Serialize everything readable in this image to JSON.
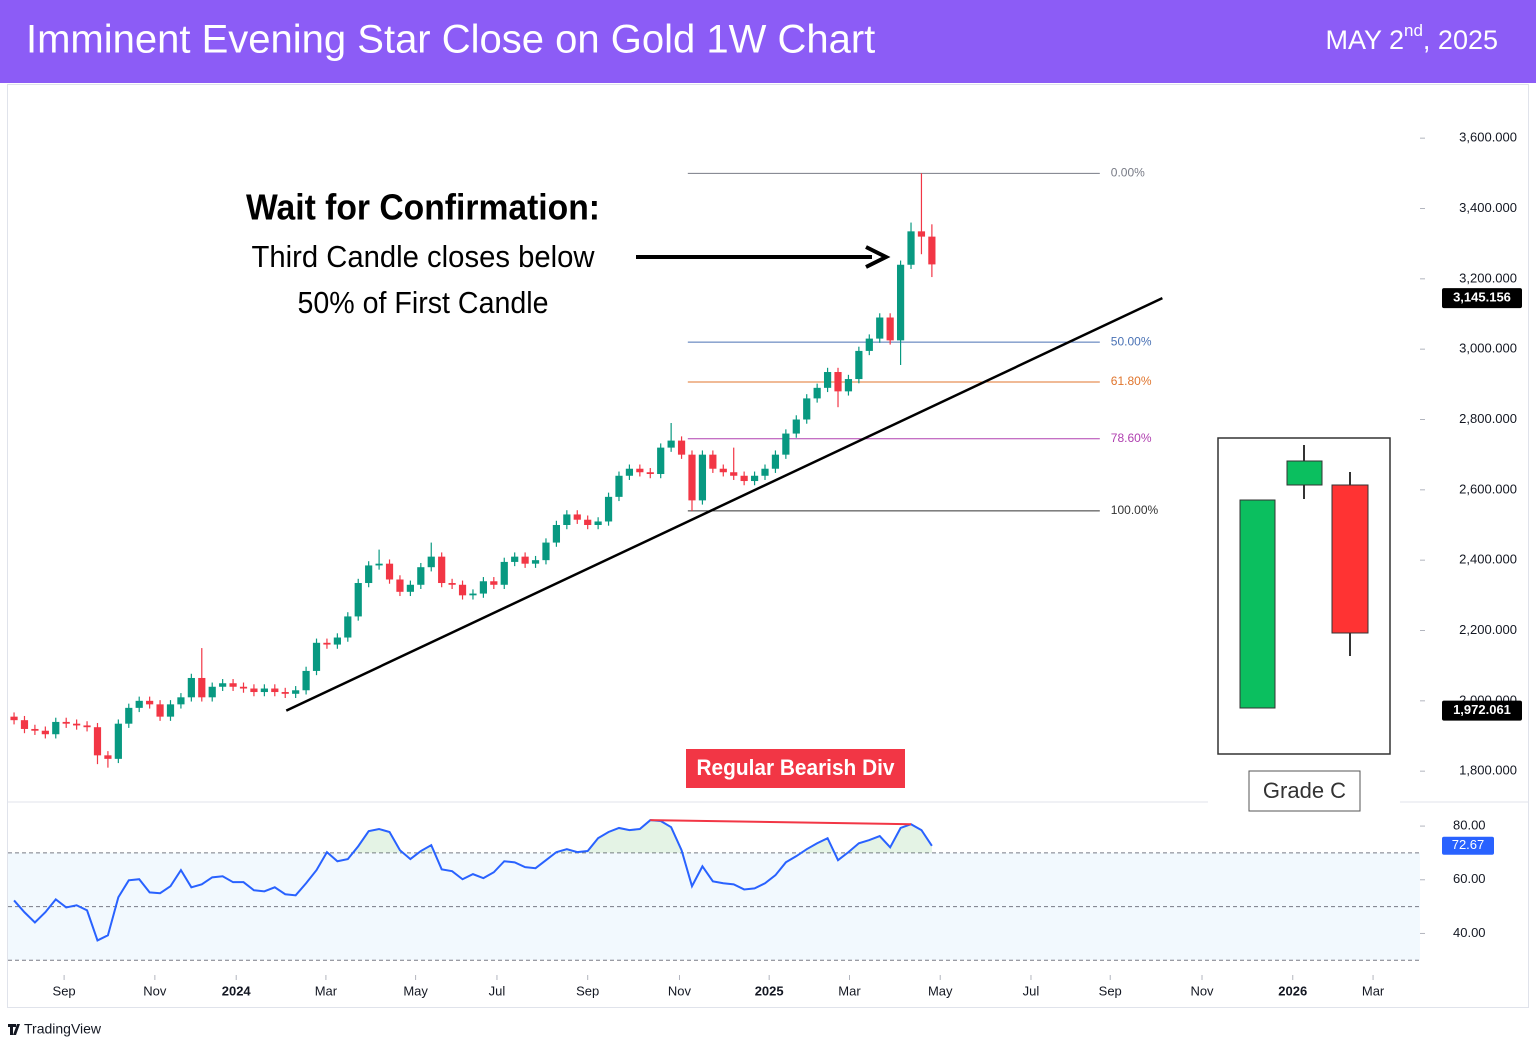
{
  "header": {
    "title": "Imminent Evening Star Close on Gold 1W Chart",
    "date": {
      "day": "MAY 2",
      "suffix": "nd",
      "year": ", 2025"
    }
  },
  "branding": "TradingView",
  "chart_data": [
    {
      "type": "candlestick",
      "open": [
        1955,
        1945,
        1920,
        1915,
        1905,
        1940,
        1935,
        1930,
        1925,
        1845,
        1835,
        1935,
        1980,
        2000,
        1990,
        1955,
        1990,
        2010,
        2065,
        2010,
        2040,
        2050,
        2040,
        2035,
        2025,
        2035,
        2025,
        2020,
        2030,
        2085,
        2165,
        2160,
        2180,
        2240,
        2335,
        2385,
        2390,
        2345,
        2310,
        2330,
        2380,
        2410,
        2335,
        2330,
        2300,
        2305,
        2340,
        2330,
        2395,
        2410,
        2390,
        2400,
        2450,
        2500,
        2530,
        2515,
        2500,
        2510,
        2580,
        2640,
        2660,
        2650,
        2645,
        2720,
        2740,
        2700,
        2570,
        2700,
        2660,
        2650,
        2640,
        2625,
        2640,
        2660,
        2700,
        2760,
        2800,
        2860,
        2890,
        2935,
        2880,
        2915,
        2995,
        3030,
        3090,
        3025,
        3240,
        3335,
        3320
      ],
      "high": [
        1967,
        1957,
        1932,
        1927,
        1952,
        1952,
        1947,
        1942,
        1937,
        1857,
        1947,
        1992,
        2012,
        2012,
        2002,
        2002,
        2022,
        2077,
        2150,
        2052,
        2062,
        2062,
        2052,
        2047,
        2047,
        2047,
        2037,
        2042,
        2097,
        2177,
        2177,
        2192,
        2252,
        2347,
        2397,
        2430,
        2402,
        2357,
        2342,
        2392,
        2450,
        2422,
        2347,
        2342,
        2317,
        2352,
        2352,
        2407,
        2422,
        2422,
        2412,
        2462,
        2512,
        2542,
        2542,
        2527,
        2522,
        2592,
        2652,
        2672,
        2672,
        2662,
        2732,
        2790,
        2752,
        2712,
        2712,
        2712,
        2672,
        2720,
        2652,
        2652,
        2672,
        2712,
        2772,
        2812,
        2872,
        2902,
        2947,
        2947,
        2927,
        3007,
        3042,
        3102,
        3102,
        3252,
        3360,
        3500,
        3355
      ],
      "low": [
        1933,
        1908,
        1903,
        1893,
        1893,
        1923,
        1918,
        1913,
        1820,
        1810,
        1823,
        1923,
        1968,
        1978,
        1943,
        1943,
        1978,
        1998,
        1998,
        1998,
        2028,
        2028,
        2023,
        2013,
        2013,
        2013,
        2008,
        2008,
        2018,
        2073,
        2148,
        2148,
        2168,
        2228,
        2323,
        2373,
        2333,
        2298,
        2298,
        2318,
        2368,
        2323,
        2318,
        2288,
        2288,
        2293,
        2318,
        2318,
        2383,
        2378,
        2378,
        2388,
        2438,
        2488,
        2503,
        2488,
        2488,
        2498,
        2568,
        2628,
        2638,
        2633,
        2633,
        2708,
        2688,
        2540,
        2558,
        2648,
        2638,
        2628,
        2613,
        2613,
        2628,
        2648,
        2688,
        2748,
        2788,
        2848,
        2878,
        2835,
        2868,
        2903,
        2983,
        3018,
        3013,
        2955,
        3228,
        3270,
        3205
      ],
      "close": [
        1945,
        1920,
        1915,
        1905,
        1940,
        1935,
        1930,
        1925,
        1845,
        1835,
        1935,
        1980,
        2000,
        1990,
        1955,
        1990,
        2010,
        2065,
        2010,
        2040,
        2050,
        2040,
        2035,
        2025,
        2035,
        2025,
        2020,
        2030,
        2085,
        2165,
        2160,
        2180,
        2240,
        2335,
        2385,
        2390,
        2345,
        2310,
        2330,
        2380,
        2410,
        2335,
        2330,
        2300,
        2305,
        2340,
        2330,
        2395,
        2410,
        2390,
        2400,
        2450,
        2500,
        2530,
        2515,
        2500,
        2510,
        2580,
        2640,
        2660,
        2650,
        2645,
        2720,
        2740,
        2700,
        2570,
        2700,
        2660,
        2650,
        2640,
        2625,
        2640,
        2660,
        2700,
        2760,
        2800,
        2860,
        2890,
        2935,
        2880,
        2915,
        2995,
        3030,
        3090,
        3025,
        3240,
        3335,
        3320,
        3241
      ],
      "colors": {
        "up": "#089981",
        "down": "#f23645"
      },
      "xlim": [
        -0.58,
        134.8
      ],
      "xticks": [
        {
          "value": 4.8,
          "label": "Sep"
        },
        {
          "value": 13.5,
          "label": "Nov"
        },
        {
          "value": 21.3,
          "label": "2024"
        },
        {
          "value": 29.9,
          "label": "Mar"
        },
        {
          "value": 38.5,
          "label": "May"
        },
        {
          "value": 46.3,
          "label": "Jul"
        },
        {
          "value": 55.0,
          "label": "Sep"
        },
        {
          "value": 63.8,
          "label": "Nov"
        },
        {
          "value": 72.4,
          "label": "2025"
        },
        {
          "value": 80.1,
          "label": "Mar"
        },
        {
          "value": 88.8,
          "label": "May"
        },
        {
          "value": 97.5,
          "label": "Jul"
        },
        {
          "value": 105.1,
          "label": "Sep"
        },
        {
          "value": 113.9,
          "label": "Nov"
        },
        {
          "value": 122.6,
          "label": "2026"
        },
        {
          "value": 130.3,
          "label": "Mar"
        }
      ],
      "ylim": [
        1718,
        3754
      ],
      "yticks": [
        {
          "value": 1800,
          "label": "1,800.000"
        },
        {
          "value": 2000,
          "label": "2,000.000"
        },
        {
          "value": 2200,
          "label": "2,200.000"
        },
        {
          "value": 2400,
          "label": "2,400.000"
        },
        {
          "value": 2600,
          "label": "2,600.000"
        },
        {
          "value": 2800,
          "label": "2,800.000"
        },
        {
          "value": 3000,
          "label": "3,000.000"
        },
        {
          "value": 3200,
          "label": "3,200.000"
        },
        {
          "value": 3400,
          "label": "3,400.000"
        },
        {
          "value": 3600,
          "label": "3,600.000"
        }
      ],
      "grid": false,
      "price_tags": [
        {
          "value": 3145.156,
          "label": "3,145.156"
        },
        {
          "value": 1972.061,
          "label": "1,972.061"
        }
      ],
      "fibonacci": {
        "start": 64.6,
        "end": 104.1,
        "levels": [
          {
            "label": "0.00%",
            "value": 3500,
            "color": "#787b86"
          },
          {
            "label": "50.00%",
            "value": 3020,
            "color": "#4a72b5"
          },
          {
            "label": "61.80%",
            "value": 2906.7,
            "color": "#e0752d"
          },
          {
            "label": "78.60%",
            "value": 2745.4,
            "color": "#b040b0"
          },
          {
            "label": "100.00%",
            "value": 2540,
            "color": "#333333"
          }
        ]
      },
      "trendline": {
        "points": [
          [
            26.1,
            1972.061
          ],
          [
            110.1,
            3145.156
          ]
        ],
        "color": "#000000"
      },
      "annotation": {
        "heading": "Wait for Confirmation:",
        "lines": [
          "Third Candle closes below",
          "50% of First Candle"
        ]
      },
      "inset": {
        "label": "Grade C"
      }
    },
    {
      "type": "line",
      "values": [
        52.3,
        47.9,
        44.1,
        47.9,
        52.7,
        49.7,
        50.5,
        48.6,
        37.4,
        39.3,
        53.5,
        59.8,
        60.2,
        55.3,
        55.0,
        57.6,
        63.6,
        57.2,
        58.3,
        60.9,
        61.3,
        59.1,
        59.1,
        56.1,
        55.7,
        57.2,
        54.6,
        54.2,
        58.7,
        63.6,
        70.3,
        66.9,
        67.7,
        72.5,
        78.1,
        78.9,
        77.8,
        71.0,
        67.7,
        70.7,
        72.9,
        63.9,
        63.2,
        60.2,
        62.1,
        60.6,
        62.8,
        66.9,
        66.5,
        64.7,
        64.3,
        67.3,
        70.3,
        71.4,
        70.3,
        70.7,
        75.5,
        77.8,
        79.3,
        78.5,
        78.9,
        82.2,
        81.9,
        79.6,
        71.0,
        57.6,
        65.0,
        59.4,
        58.7,
        58.3,
        56.4,
        56.8,
        58.7,
        61.7,
        66.5,
        68.8,
        71.4,
        73.6,
        75.5,
        67.3,
        70.3,
        73.6,
        74.8,
        76.3,
        72.1,
        79.3,
        80.7,
        78.5,
        72.67
      ],
      "color": "#2962ff",
      "ylim": [
        26.2,
        88.6
      ],
      "yticks": [
        {
          "value": 40,
          "label": "40.00"
        },
        {
          "value": 60,
          "label": "60.00"
        },
        {
          "value": 80,
          "label": "80.00"
        }
      ],
      "levels": [
        70,
        50,
        30
      ],
      "divergence": {
        "label": "Regular Bearish Div",
        "points": [
          [
            61,
            82.2
          ],
          [
            86,
            80.7
          ]
        ],
        "color": "#f23645"
      }
    }
  ]
}
